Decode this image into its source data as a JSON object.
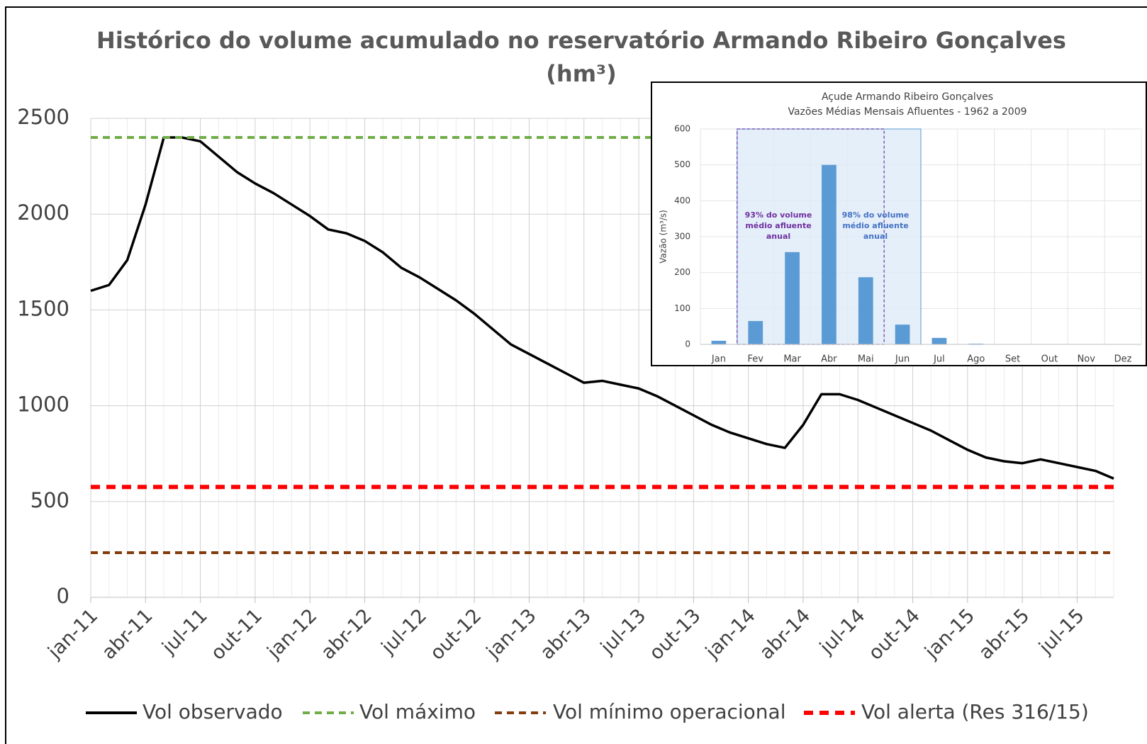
{
  "chart_data": [
    {
      "type": "line",
      "title": "Histórico do volume acumulado no reservatório Armando Ribeiro Gonçalves",
      "subtitle": "(hm³)",
      "categories": [
        "jan-11",
        null,
        null,
        "abr-11",
        null,
        null,
        "jul-11",
        null,
        null,
        "out-11",
        null,
        null,
        "jan-12",
        null,
        null,
        "abr-12",
        null,
        null,
        "jul-12",
        null,
        null,
        "out-12",
        null,
        null,
        "jan-13",
        null,
        null,
        "abr-13",
        null,
        null,
        "jul-13",
        null,
        null,
        "out-13",
        null,
        null,
        "jan-14",
        null,
        null,
        "abr-14",
        null,
        null,
        "jul-14",
        null,
        null,
        "out-14",
        null,
        null,
        "jan-15",
        null,
        null,
        "abr-15",
        null,
        null,
        "jul-15",
        null,
        null
      ],
      "series": [
        {
          "name": "Vol observado",
          "color": "#000000",
          "values": [
            1600,
            1630,
            1760,
            2050,
            2400,
            2400,
            2380,
            2300,
            2220,
            2160,
            2110,
            2050,
            1990,
            1920,
            1900,
            1860,
            1800,
            1720,
            1670,
            1610,
            1550,
            1480,
            1400,
            1320,
            1270,
            1220,
            1170,
            1120,
            1130,
            1110,
            1090,
            1050,
            1000,
            950,
            900,
            860,
            830,
            800,
            780,
            900,
            1060,
            1060,
            1030,
            990,
            950,
            910,
            870,
            820,
            770,
            730,
            710,
            700,
            720,
            700,
            680,
            660,
            620
          ]
        },
        {
          "name": "Vol máximo",
          "color": "#70ad47",
          "value": 2400
        },
        {
          "name": "Vol mínimo operacional",
          "color": "#843c0c",
          "value": 233
        },
        {
          "name": "Vol alerta (Res 316/15)",
          "color": "#ff0000",
          "value": 576
        }
      ],
      "ylim": [
        0,
        2500
      ],
      "yticks": [
        0,
        500,
        1000,
        1500,
        2000,
        2500
      ],
      "grid": true,
      "legend": "bottom"
    },
    {
      "type": "bar",
      "title": "Açude Armando Ribeiro Gonçalves",
      "subtitle": "Vazões Médias Mensais Afluentes - 1962 a 2009",
      "ylabel": "Vazão (m³/s)",
      "categories": [
        "Jan",
        "Fev",
        "Mar",
        "Abr",
        "Mai",
        "Jun",
        "Jul",
        "Ago",
        "Set",
        "Out",
        "Nov",
        "Dez"
      ],
      "values": [
        10,
        65,
        257,
        500,
        187,
        55,
        18,
        2,
        0,
        0,
        0,
        0
      ],
      "color": "#5b9bd5",
      "ylim": [
        0,
        600
      ],
      "yticks": [
        0,
        100,
        200,
        300,
        400,
        500,
        600
      ],
      "grid": true,
      "annotations": [
        {
          "lines": [
            "93% do volume",
            "médio afluente",
            "anual"
          ],
          "color": "#7030a0"
        },
        {
          "lines": [
            "98% do volume",
            "médio afluente",
            "anual"
          ],
          "color": "#4472c4"
        }
      ]
    }
  ]
}
